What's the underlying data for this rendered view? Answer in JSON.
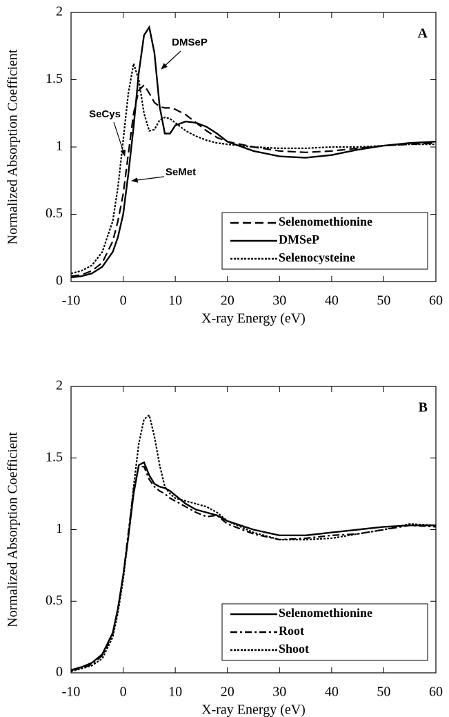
{
  "chart_data": [
    {
      "type": "line",
      "label": "A",
      "xlabel": "X-ray Energy (eV)",
      "ylabel": "Normalized Absorption Coefficient",
      "x": [
        -10,
        -8,
        -6,
        -4,
        -2,
        -1,
        0,
        1,
        2,
        3,
        4,
        5,
        6,
        7,
        8,
        9,
        10,
        12,
        14,
        16,
        18,
        20,
        25,
        30,
        35,
        40,
        45,
        50,
        55,
        60
      ],
      "series": [
        {
          "name": "Selenomethionine",
          "color": "#000000",
          "dash": "dashed",
          "values": [
            0.04,
            0.05,
            0.08,
            0.14,
            0.3,
            0.45,
            0.65,
            0.95,
            1.25,
            1.42,
            1.46,
            1.4,
            1.33,
            1.3,
            1.29,
            1.29,
            1.28,
            1.24,
            1.18,
            1.12,
            1.07,
            1.04,
            1.0,
            0.97,
            0.96,
            0.97,
            0.99,
            1.01,
            1.02,
            1.03
          ]
        },
        {
          "name": "DMSeP",
          "color": "#000000",
          "dash": "solid",
          "values": [
            0.03,
            0.04,
            0.06,
            0.11,
            0.22,
            0.33,
            0.5,
            0.8,
            1.15,
            1.55,
            1.83,
            1.89,
            1.7,
            1.3,
            1.1,
            1.1,
            1.16,
            1.19,
            1.18,
            1.15,
            1.1,
            1.04,
            0.97,
            0.93,
            0.92,
            0.94,
            0.98,
            1.01,
            1.03,
            1.04
          ]
        },
        {
          "name": "Selenocysteine",
          "color": "#000000",
          "dash": "dotted",
          "values": [
            0.06,
            0.08,
            0.12,
            0.22,
            0.45,
            0.7,
            1.05,
            1.4,
            1.62,
            1.5,
            1.25,
            1.12,
            1.13,
            1.2,
            1.22,
            1.21,
            1.18,
            1.12,
            1.08,
            1.05,
            1.03,
            1.02,
            1.0,
            0.99,
            0.99,
            1.0,
            1.0,
            1.01,
            1.02,
            1.02
          ]
        }
      ],
      "annotations": [
        "DMSeP",
        "SeCys",
        "SeMet"
      ],
      "xlim": [
        -10,
        60
      ],
      "xticks": [
        -10,
        0,
        10,
        20,
        30,
        40,
        50,
        60
      ],
      "ylim": [
        0,
        2
      ],
      "yticks": [
        0,
        0.5,
        1,
        1.5,
        2
      ],
      "legend": "lower right"
    },
    {
      "type": "line",
      "label": "B",
      "xlabel": "X-ray Energy (eV)",
      "ylabel": "Normalized Absorption Coefficient",
      "x": [
        -10,
        -8,
        -6,
        -4,
        -2,
        -1,
        0,
        1,
        2,
        3,
        4,
        5,
        6,
        7,
        8,
        9,
        10,
        12,
        14,
        16,
        18,
        20,
        25,
        30,
        35,
        40,
        45,
        50,
        55,
        60
      ],
      "series": [
        {
          "name": "Selenomethionine",
          "color": "#000000",
          "dash": "solid",
          "values": [
            0.02,
            0.04,
            0.07,
            0.13,
            0.28,
            0.45,
            0.68,
            0.95,
            1.25,
            1.45,
            1.47,
            1.38,
            1.32,
            1.3,
            1.29,
            1.27,
            1.24,
            1.18,
            1.14,
            1.12,
            1.1,
            1.06,
            1.0,
            0.96,
            0.96,
            0.98,
            1.0,
            1.02,
            1.03,
            1.03
          ]
        },
        {
          "name": "Root",
          "color": "#000000",
          "dash": "dashdot",
          "values": [
            0.02,
            0.03,
            0.06,
            0.12,
            0.27,
            0.45,
            0.68,
            0.98,
            1.28,
            1.44,
            1.44,
            1.35,
            1.3,
            1.27,
            1.25,
            1.22,
            1.2,
            1.16,
            1.12,
            1.09,
            1.1,
            1.04,
            0.97,
            0.93,
            0.94,
            0.96,
            0.97,
            1.0,
            1.03,
            1.02
          ]
        },
        {
          "name": "Shoot",
          "color": "#000000",
          "dash": "dotted",
          "values": [
            0.01,
            0.03,
            0.05,
            0.1,
            0.25,
            0.42,
            0.65,
            0.95,
            1.3,
            1.6,
            1.77,
            1.8,
            1.65,
            1.45,
            1.3,
            1.25,
            1.22,
            1.2,
            1.18,
            1.16,
            1.12,
            1.06,
            0.98,
            0.93,
            0.93,
            0.94,
            0.97,
            1.0,
            1.04,
            1.03
          ]
        }
      ],
      "xlim": [
        -10,
        60
      ],
      "xticks": [
        -10,
        0,
        10,
        20,
        30,
        40,
        50,
        60
      ],
      "ylim": [
        0,
        2
      ],
      "yticks": [
        0,
        0.5,
        1,
        1.5,
        2
      ],
      "legend": "lower right"
    }
  ]
}
